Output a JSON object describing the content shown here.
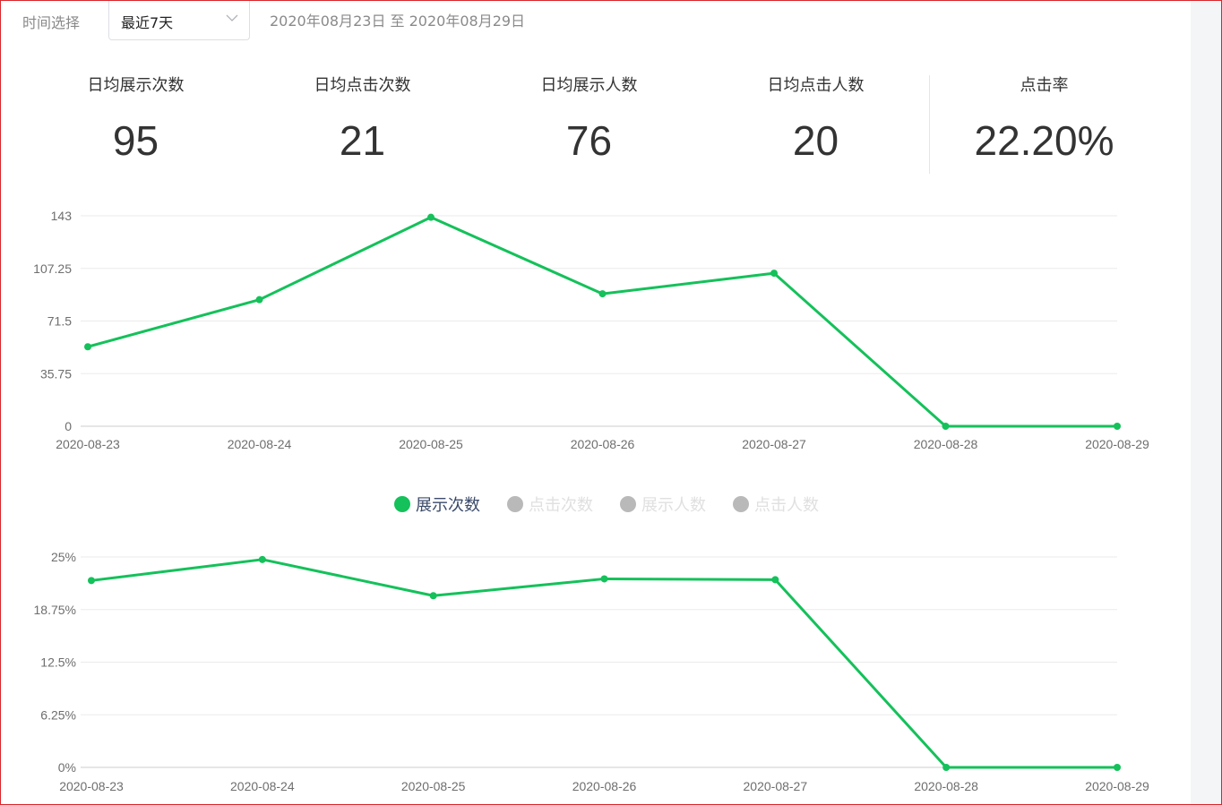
{
  "filter": {
    "label": "时间选择",
    "selected": "最近7天",
    "range_text": "2020年08月23日 至 2020年08月29日"
  },
  "stats": [
    {
      "label": "日均展示次数",
      "value": "95"
    },
    {
      "label": "日均点击次数",
      "value": "21"
    },
    {
      "label": "日均展示人数",
      "value": "76"
    },
    {
      "label": "日均点击人数",
      "value": "20"
    },
    {
      "label": "点击率",
      "value": "22.20%"
    }
  ],
  "legend": [
    {
      "name": "展示次数",
      "active": true,
      "color": "#14c15a"
    },
    {
      "name": "点击次数",
      "active": false,
      "color": "#b9b9b9"
    },
    {
      "name": "展示人数",
      "active": false,
      "color": "#b9b9b9"
    },
    {
      "name": "点击人数",
      "active": false,
      "color": "#b9b9b9"
    }
  ],
  "colors": {
    "line": "#14c15a",
    "inactive": "#b9b9b9",
    "legend_active_text": "#3b4a6b",
    "legend_inactive_text": "#e0e0e0",
    "grid": "#ebebeb",
    "axis": "#cccccc"
  },
  "chart_data": [
    {
      "type": "line",
      "x": [
        "2020-08-23",
        "2020-08-24",
        "2020-08-25",
        "2020-08-26",
        "2020-08-27",
        "2020-08-28",
        "2020-08-29"
      ],
      "yticks": [
        "0",
        "35.75",
        "71.5",
        "107.25",
        "143"
      ],
      "ylim": [
        0,
        143
      ],
      "grid": true,
      "series": [
        {
          "name": "展示次数",
          "values": [
            54,
            86,
            142,
            90,
            104,
            0,
            0
          ]
        }
      ]
    },
    {
      "type": "line",
      "x": [
        "2020-08-23",
        "2020-08-24",
        "2020-08-25",
        "2020-08-26",
        "2020-08-27",
        "2020-08-28",
        "2020-08-29"
      ],
      "yticks": [
        "0%",
        "6.25%",
        "12.5%",
        "18.75%",
        "25%"
      ],
      "ylim": [
        0,
        25
      ],
      "grid": true,
      "series": [
        {
          "values": [
            22.2,
            24.7,
            20.4,
            22.4,
            22.3,
            0,
            0
          ]
        }
      ]
    }
  ]
}
